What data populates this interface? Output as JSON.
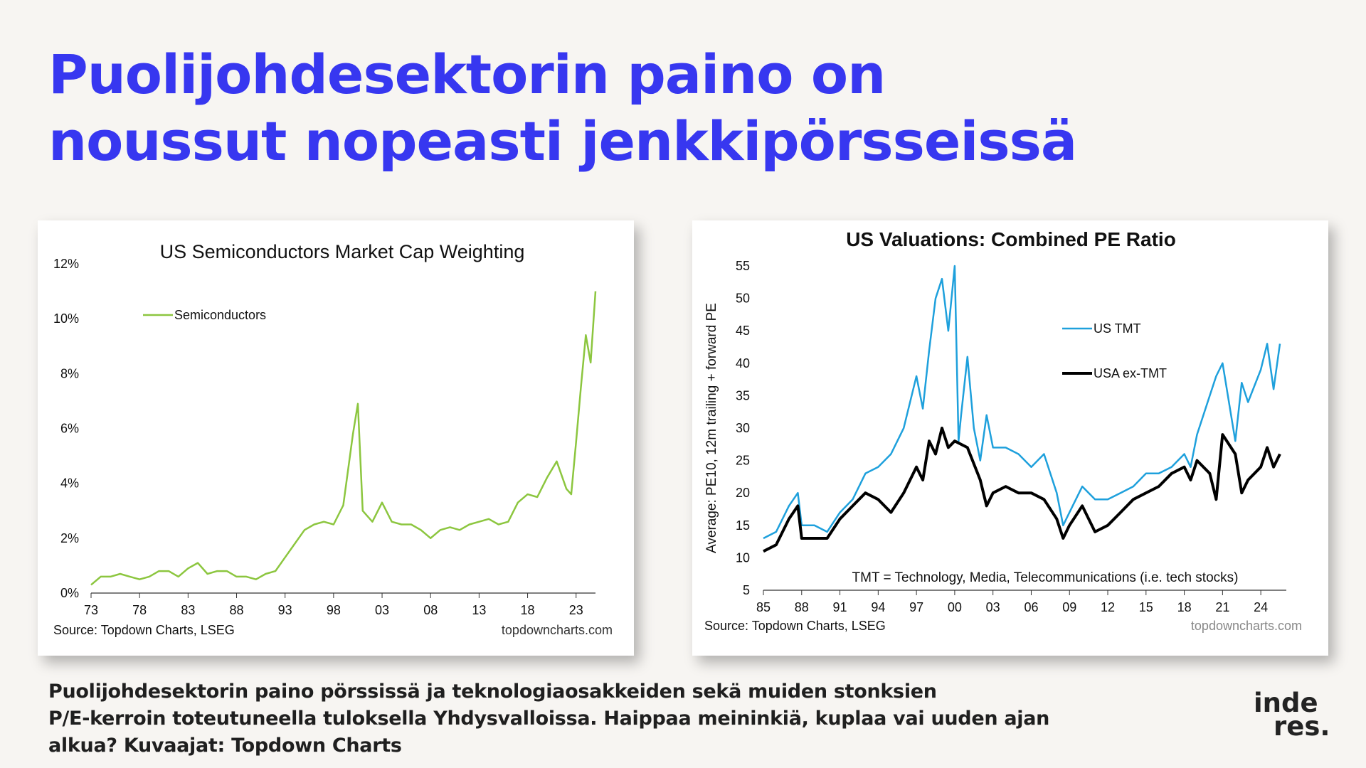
{
  "headline": {
    "line1": "Puolijohdesektorin paino on",
    "line2": "noussut nopeasti jenkkipörsseissä"
  },
  "caption": {
    "line1": "Puolijohdesektorin paino pörssissä ja teknologiaosakkeiden sekä muiden stonksien",
    "line2": "P/E-kerroin toteutuneella tuloksella Yhdysvalloissa. Haippaa meininkiä, kuplaa vai uuden ajan",
    "line3": "alkua? Kuvaajat: Topdown Charts"
  },
  "logo": {
    "line1": "inde",
    "line2": "res."
  },
  "colors": {
    "headline": "#3737f0",
    "semis": "#8cc63f",
    "tmt": "#1ea0dc",
    "ex_tmt": "#000000",
    "background": "#f7f5f2"
  },
  "chart_data": [
    {
      "type": "line",
      "title": "US Semiconductors Market Cap Weighting",
      "xlabel": "",
      "ylabel": "",
      "x_ticks": [
        "73",
        "78",
        "83",
        "88",
        "93",
        "98",
        "03",
        "08",
        "13",
        "18",
        "23"
      ],
      "y_ticks": [
        "0%",
        "2%",
        "4%",
        "6%",
        "8%",
        "10%",
        "12%"
      ],
      "xlim": [
        1973,
        2025
      ],
      "ylim": [
        0,
        12
      ],
      "grid": false,
      "legend": "top-left",
      "source": "Source: Topdown Charts, LSEG",
      "watermark": "topdowncharts.com",
      "series": [
        {
          "name": "Semiconductors",
          "color": "#8cc63f",
          "x": [
            1973,
            1974,
            1975,
            1976,
            1977,
            1978,
            1979,
            1980,
            1981,
            1982,
            1983,
            1984,
            1985,
            1986,
            1987,
            1988,
            1989,
            1990,
            1991,
            1992,
            1993,
            1994,
            1995,
            1996,
            1997,
            1998,
            1999,
            2000,
            2000.5,
            2001,
            2002,
            2003,
            2004,
            2005,
            2006,
            2007,
            2008,
            2009,
            2010,
            2011,
            2012,
            2013,
            2014,
            2015,
            2016,
            2017,
            2018,
            2019,
            2020,
            2021,
            2022,
            2022.5,
            2023,
            2023.5,
            2024,
            2024.5,
            2025
          ],
          "values": [
            0.3,
            0.6,
            0.6,
            0.7,
            0.6,
            0.5,
            0.6,
            0.8,
            0.8,
            0.6,
            0.9,
            1.1,
            0.7,
            0.8,
            0.8,
            0.6,
            0.6,
            0.5,
            0.7,
            0.8,
            1.3,
            1.8,
            2.3,
            2.5,
            2.6,
            2.5,
            3.2,
            5.8,
            6.9,
            3.0,
            2.6,
            3.3,
            2.6,
            2.5,
            2.5,
            2.3,
            2.0,
            2.3,
            2.4,
            2.3,
            2.5,
            2.6,
            2.7,
            2.5,
            2.6,
            3.3,
            3.6,
            3.5,
            4.2,
            4.8,
            3.8,
            3.6,
            5.5,
            7.5,
            9.4,
            8.4,
            11.0
          ]
        }
      ]
    },
    {
      "type": "line",
      "title": "US Valuations: Combined PE Ratio",
      "xlabel": "",
      "ylabel": "Average: PE10, 12m trailing + forward PE",
      "x_ticks": [
        "85",
        "88",
        "91",
        "94",
        "97",
        "00",
        "03",
        "06",
        "09",
        "12",
        "15",
        "18",
        "21",
        "24"
      ],
      "y_ticks": [
        "5",
        "10",
        "15",
        "20",
        "25",
        "30",
        "35",
        "40",
        "45",
        "50",
        "55"
      ],
      "xlim": [
        1985,
        2026
      ],
      "ylim": [
        5,
        55
      ],
      "grid": false,
      "legend": "top-right",
      "annotation": "TMT = Technology, Media, Telecommunications  (i.e. tech stocks)",
      "source": "Source: Topdown Charts, LSEG",
      "watermark": "topdowncharts.com",
      "series": [
        {
          "name": "US TMT",
          "color": "#1ea0dc",
          "x": [
            1985,
            1986,
            1987,
            1987.7,
            1988,
            1989,
            1990,
            1991,
            1992,
            1993,
            1994,
            1995,
            1996,
            1997,
            1997.5,
            1998,
            1998.5,
            1999,
            1999.5,
            2000,
            2000.3,
            2000.5,
            2001,
            2001.5,
            2002,
            2002.5,
            2003,
            2004,
            2005,
            2006,
            2007,
            2008,
            2008.5,
            2009,
            2010,
            2011,
            2012,
            2013,
            2014,
            2015,
            2016,
            2017,
            2018,
            2018.5,
            2019,
            2020,
            2020.5,
            2021,
            2022,
            2022.5,
            2023,
            2024,
            2024.5,
            2025,
            2025.5
          ],
          "values": [
            13,
            14,
            18,
            20,
            15,
            15,
            14,
            17,
            19,
            23,
            24,
            26,
            30,
            38,
            33,
            42,
            50,
            53,
            45,
            55,
            28,
            32,
            41,
            30,
            25,
            32,
            27,
            27,
            26,
            24,
            26,
            20,
            15,
            17,
            21,
            19,
            19,
            20,
            21,
            23,
            23,
            24,
            26,
            24,
            29,
            35,
            38,
            40,
            28,
            37,
            34,
            39,
            43,
            36,
            43
          ]
        },
        {
          "name": "USA ex-TMT",
          "color": "#000000",
          "x": [
            1985,
            1986,
            1987,
            1987.7,
            1988,
            1989,
            1990,
            1991,
            1992,
            1993,
            1994,
            1995,
            1996,
            1997,
            1997.5,
            1998,
            1998.5,
            1999,
            1999.5,
            2000,
            2001,
            2002,
            2002.5,
            2003,
            2004,
            2005,
            2006,
            2007,
            2008,
            2008.5,
            2009,
            2010,
            2011,
            2012,
            2013,
            2014,
            2015,
            2016,
            2017,
            2018,
            2018.5,
            2019,
            2020,
            2020.5,
            2021,
            2022,
            2022.5,
            2023,
            2024,
            2024.5,
            2025,
            2025.5
          ],
          "values": [
            11,
            12,
            16,
            18,
            13,
            13,
            13,
            16,
            18,
            20,
            19,
            17,
            20,
            24,
            22,
            28,
            26,
            30,
            27,
            28,
            27,
            22,
            18,
            20,
            21,
            20,
            20,
            19,
            16,
            13,
            15,
            18,
            14,
            15,
            17,
            19,
            20,
            21,
            23,
            24,
            22,
            25,
            23,
            19,
            29,
            26,
            20,
            22,
            24,
            27,
            24,
            26
          ]
        }
      ]
    }
  ]
}
